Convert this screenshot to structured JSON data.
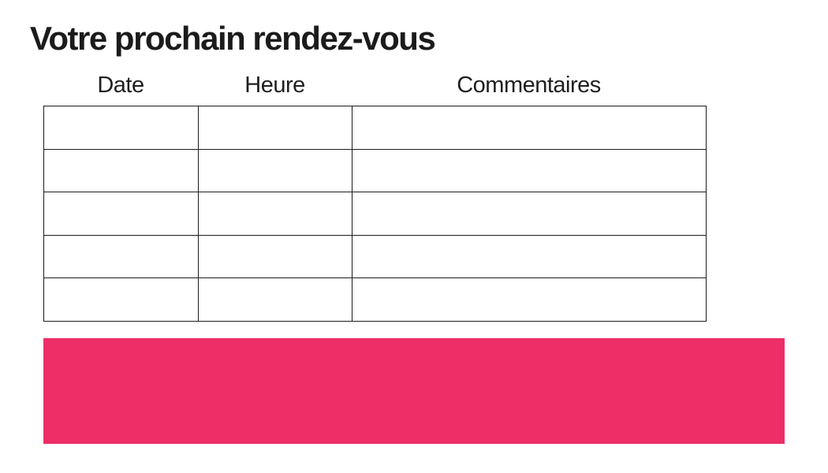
{
  "page": {
    "title": "Votre prochain rendez-vous"
  },
  "table": {
    "columns": [
      {
        "label": "Date"
      },
      {
        "label": "Heure"
      },
      {
        "label": "Commentaires"
      }
    ],
    "rows": [
      [
        "",
        "",
        ""
      ],
      [
        "",
        "",
        ""
      ],
      [
        "",
        "",
        ""
      ],
      [
        "",
        "",
        ""
      ],
      [
        "",
        "",
        ""
      ]
    ]
  },
  "banner": {
    "text": "",
    "color": "#ED2E67"
  },
  "colors": {
    "text": "#1b1b1b",
    "table_border": "#1c1c1c"
  }
}
